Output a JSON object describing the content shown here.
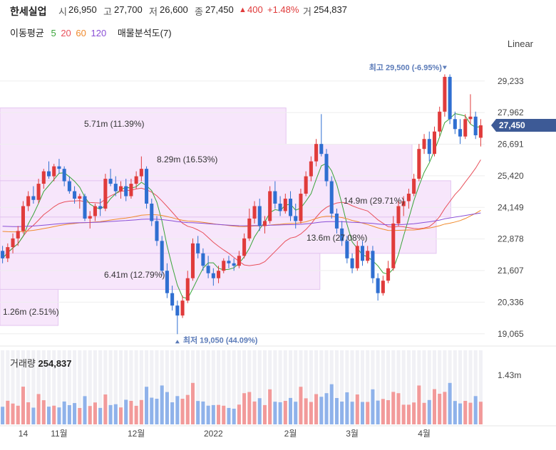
{
  "header": {
    "name": "한세실업",
    "open_label": "시",
    "open": "26,950",
    "high_label": "고",
    "high": "27,700",
    "low_label": "저",
    "low": "26,600",
    "close_label": "종",
    "close": "27,450",
    "change_arrow": "▲",
    "change": "400",
    "change_pct": "+1.48%",
    "volume_label": "거",
    "volume": "254,837"
  },
  "ma_legend": {
    "label": "이동평균",
    "periods": [
      {
        "text": "5",
        "color": "#3aa43a"
      },
      {
        "text": "20",
        "color": "#e8505b"
      },
      {
        "text": "60",
        "color": "#f08a2c"
      },
      {
        "text": "120",
        "color": "#8a4fd6"
      }
    ],
    "volume_profile_label": "매물분석도(7)"
  },
  "scale_button": "Linear",
  "volume_panel": {
    "label": "거래량",
    "value": "254,837",
    "axis_tick": "1.43m"
  },
  "chart_data": {
    "type": "candlestick",
    "y_ticks": [
      "29,233",
      "27,962",
      "26,691",
      "25,420",
      "24,149",
      "22,878",
      "21,607",
      "20,336",
      "19,065"
    ],
    "y_tick_values": [
      29233,
      27962,
      26691,
      25420,
      24149,
      22878,
      21607,
      20336,
      19065
    ],
    "ylim": [
      18600,
      30200
    ],
    "current_price_label": "27,450",
    "current_price": 27450,
    "x_ticks": [
      "14",
      "11월",
      "12월",
      "2022",
      "2월",
      "3월",
      "4월"
    ],
    "x_tick_index": [
      4,
      11,
      26,
      41,
      56,
      68,
      82
    ],
    "max_annotation": "최고 29,500 (-6.95%)",
    "max_price": 29500,
    "min_annotation": "최저 19,050 (44.09%)",
    "min_price": 19050,
    "volume_profile": [
      {
        "low": 26691,
        "high": 28150,
        "label": "5.71m (11.39%)",
        "frac": 0.59
      },
      {
        "low": 25220,
        "high": 26691,
        "label": "8.29m (16.53%)",
        "frac": 0.85
      },
      {
        "low": 23760,
        "high": 25220,
        "label": "14.9m (29.71%)",
        "frac": 0.93
      },
      {
        "low": 22300,
        "high": 23760,
        "label": "13.6m (27.08%)",
        "frac": 0.9
      },
      {
        "low": 20850,
        "high": 22300,
        "label": "6.41m (12.79%)",
        "frac": 0.66
      },
      {
        "low": 19400,
        "high": 20850,
        "label": "1.26m (2.51%)",
        "frac": 0.12
      }
    ],
    "candles": [
      [
        22400,
        22600,
        21900,
        22100
      ],
      [
        22100,
        22700,
        21950,
        22550
      ],
      [
        22550,
        23100,
        22300,
        22900
      ],
      [
        22900,
        23400,
        22600,
        23200
      ],
      [
        23200,
        24400,
        23100,
        24200
      ],
      [
        24200,
        24800,
        24000,
        24600
      ],
      [
        24600,
        25000,
        24300,
        24450
      ],
      [
        24450,
        25300,
        24300,
        25100
      ],
      [
        25100,
        25700,
        24900,
        25600
      ],
      [
        25600,
        26000,
        25300,
        25400
      ],
      [
        25400,
        25900,
        25200,
        25800
      ],
      [
        25800,
        26100,
        25500,
        25700
      ],
      [
        25700,
        25800,
        25000,
        25200
      ],
      [
        25200,
        25400,
        24700,
        24800
      ],
      [
        24800,
        25000,
        24300,
        24500
      ],
      [
        24500,
        24700,
        24100,
        24600
      ],
      [
        24600,
        24700,
        23600,
        23700
      ],
      [
        23700,
        24000,
        23300,
        23800
      ],
      [
        23800,
        24300,
        23600,
        24200
      ],
      [
        24200,
        24500,
        23800,
        24100
      ],
      [
        24100,
        25500,
        24000,
        25300
      ],
      [
        25300,
        25700,
        25000,
        25100
      ],
      [
        25100,
        25400,
        24600,
        24800
      ],
      [
        24800,
        25200,
        24500,
        25000
      ],
      [
        25000,
        25300,
        24400,
        24600
      ],
      [
        24600,
        25300,
        24500,
        25100
      ],
      [
        25100,
        25600,
        24900,
        25400
      ],
      [
        25400,
        26200,
        25200,
        25700
      ],
      [
        25700,
        25800,
        24100,
        24300
      ],
      [
        24300,
        24500,
        23400,
        23600
      ],
      [
        23600,
        23800,
        22600,
        22800
      ],
      [
        22800,
        23000,
        21400,
        21600
      ],
      [
        21600,
        21900,
        20500,
        20700
      ],
      [
        20700,
        21000,
        20000,
        20200
      ],
      [
        20200,
        20400,
        19050,
        19800
      ],
      [
        19800,
        20600,
        19700,
        20400
      ],
      [
        20400,
        21600,
        20300,
        21300
      ],
      [
        21300,
        22900,
        21200,
        22700
      ],
      [
        22700,
        23000,
        22100,
        22300
      ],
      [
        22300,
        22500,
        21600,
        21800
      ],
      [
        21800,
        22200,
        21300,
        21500
      ],
      [
        21500,
        21700,
        21000,
        21300
      ],
      [
        21300,
        21800,
        21100,
        21600
      ],
      [
        21600,
        22100,
        21500,
        22000
      ],
      [
        22000,
        22200,
        21700,
        21900
      ],
      [
        21900,
        22100,
        21600,
        21800
      ],
      [
        21800,
        22400,
        21700,
        22200
      ],
      [
        22200,
        23100,
        22100,
        22900
      ],
      [
        22900,
        24100,
        22800,
        23700
      ],
      [
        23700,
        24400,
        23500,
        24200
      ],
      [
        24200,
        24500,
        23200,
        23400
      ],
      [
        23400,
        23800,
        23100,
        23600
      ],
      [
        23600,
        25000,
        23500,
        24800
      ],
      [
        24800,
        25200,
        24100,
        24300
      ],
      [
        24300,
        24600,
        23800,
        24000
      ],
      [
        24000,
        24700,
        23900,
        24500
      ],
      [
        24500,
        24800,
        23600,
        23800
      ],
      [
        23800,
        24300,
        23300,
        23600
      ],
      [
        23600,
        24900,
        23500,
        24700
      ],
      [
        24700,
        25600,
        24600,
        25400
      ],
      [
        25400,
        26200,
        25200,
        26000
      ],
      [
        26000,
        26900,
        25800,
        26700
      ],
      [
        26700,
        27900,
        26200,
        26300
      ],
      [
        26300,
        26500,
        25000,
        25200
      ],
      [
        25200,
        25400,
        23700,
        23900
      ],
      [
        23900,
        24100,
        23100,
        23300
      ],
      [
        23300,
        23600,
        22600,
        22800
      ],
      [
        22800,
        23000,
        21900,
        22100
      ],
      [
        22100,
        22300,
        21500,
        21700
      ],
      [
        21700,
        22800,
        21600,
        22600
      ],
      [
        22600,
        22800,
        21800,
        22000
      ],
      [
        22000,
        22600,
        21900,
        22400
      ],
      [
        22400,
        22600,
        21100,
        21300
      ],
      [
        21300,
        21500,
        20400,
        20700
      ],
      [
        20700,
        21400,
        20600,
        21200
      ],
      [
        21200,
        22000,
        21100,
        21700
      ],
      [
        21700,
        23800,
        21600,
        23500
      ],
      [
        23500,
        24400,
        23400,
        24200
      ],
      [
        24200,
        24600,
        23800,
        24400
      ],
      [
        24400,
        24900,
        24100,
        24700
      ],
      [
        24700,
        25500,
        24600,
        25300
      ],
      [
        25300,
        26700,
        25200,
        26500
      ],
      [
        26500,
        27100,
        26300,
        26900
      ],
      [
        26900,
        27200,
        26000,
        26300
      ],
      [
        26300,
        27400,
        26200,
        27200
      ],
      [
        27200,
        28200,
        27000,
        28000
      ],
      [
        28000,
        29500,
        27800,
        29400
      ],
      [
        29400,
        29500,
        27500,
        27700
      ],
      [
        27700,
        28000,
        27100,
        27300
      ],
      [
        27300,
        27700,
        26700,
        27000
      ],
      [
        27000,
        27900,
        26900,
        27700
      ],
      [
        27700,
        28700,
        27500,
        27800
      ],
      [
        27800,
        28000,
        26900,
        27050
      ],
      [
        26950,
        27700,
        26600,
        27450
      ]
    ]
  }
}
